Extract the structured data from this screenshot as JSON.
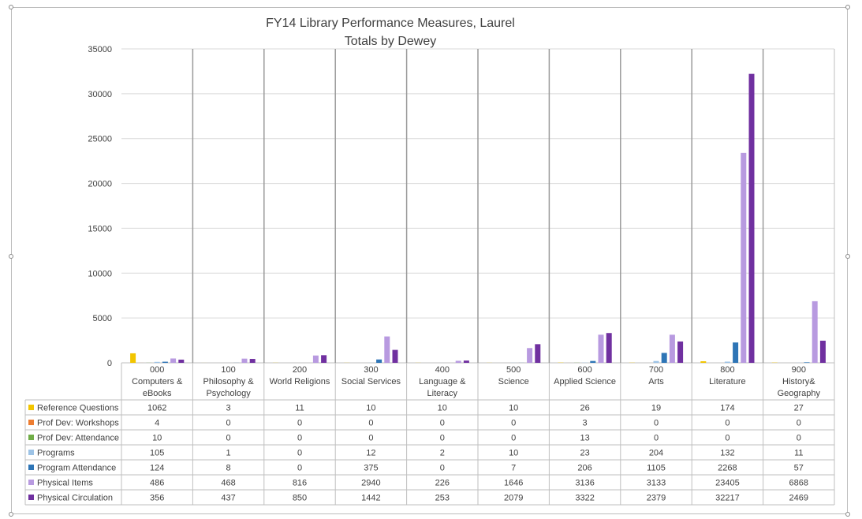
{
  "chart_data": {
    "type": "bar",
    "title": "FY14 Library Performance Measures, Laurel",
    "subtitle": "Totals by Dewey",
    "ylim": [
      0,
      35000
    ],
    "yticks": [
      0,
      5000,
      10000,
      15000,
      20000,
      25000,
      30000,
      35000
    ],
    "grid": true,
    "legend": "data-table-left",
    "categories": [
      [
        "000",
        "Computers &",
        "eBooks"
      ],
      [
        "100",
        "Philosophy &",
        "Psychology"
      ],
      [
        "200",
        "World Religions"
      ],
      [
        "300",
        "Social Services"
      ],
      [
        "400",
        "Language &",
        "Literacy"
      ],
      [
        "500",
        "Science"
      ],
      [
        "600",
        "Applied Science"
      ],
      [
        "700",
        "Arts"
      ],
      [
        "800",
        "Literature"
      ],
      [
        "900",
        "History&",
        "Geography"
      ]
    ],
    "series": [
      {
        "name": "Reference Questions",
        "color": "#f2c500",
        "values": [
          1062,
          3,
          11,
          10,
          10,
          10,
          26,
          19,
          174,
          27
        ]
      },
      {
        "name": "Prof Dev: Workshops",
        "color": "#ed7d31",
        "values": [
          4,
          0,
          0,
          0,
          0,
          0,
          3,
          0,
          0,
          0
        ]
      },
      {
        "name": "Prof Dev: Attendance",
        "color": "#70ad47",
        "values": [
          10,
          0,
          0,
          0,
          0,
          0,
          13,
          0,
          0,
          0
        ]
      },
      {
        "name": "Programs",
        "color": "#9dc3e6",
        "values": [
          105,
          1,
          0,
          12,
          2,
          10,
          23,
          204,
          132,
          11
        ]
      },
      {
        "name": "Program Attendance",
        "color": "#2e75b6",
        "values": [
          124,
          8,
          0,
          375,
          0,
          7,
          206,
          1105,
          2268,
          57
        ]
      },
      {
        "name": "Physical Items",
        "color": "#b89ae0",
        "values": [
          486,
          468,
          816,
          2940,
          226,
          1646,
          3136,
          3133,
          23405,
          6868
        ]
      },
      {
        "name": "Physical Circulation",
        "color": "#7030a0",
        "values": [
          356,
          437,
          850,
          1442,
          253,
          2079,
          3322,
          2379,
          32217,
          2469
        ]
      }
    ]
  }
}
